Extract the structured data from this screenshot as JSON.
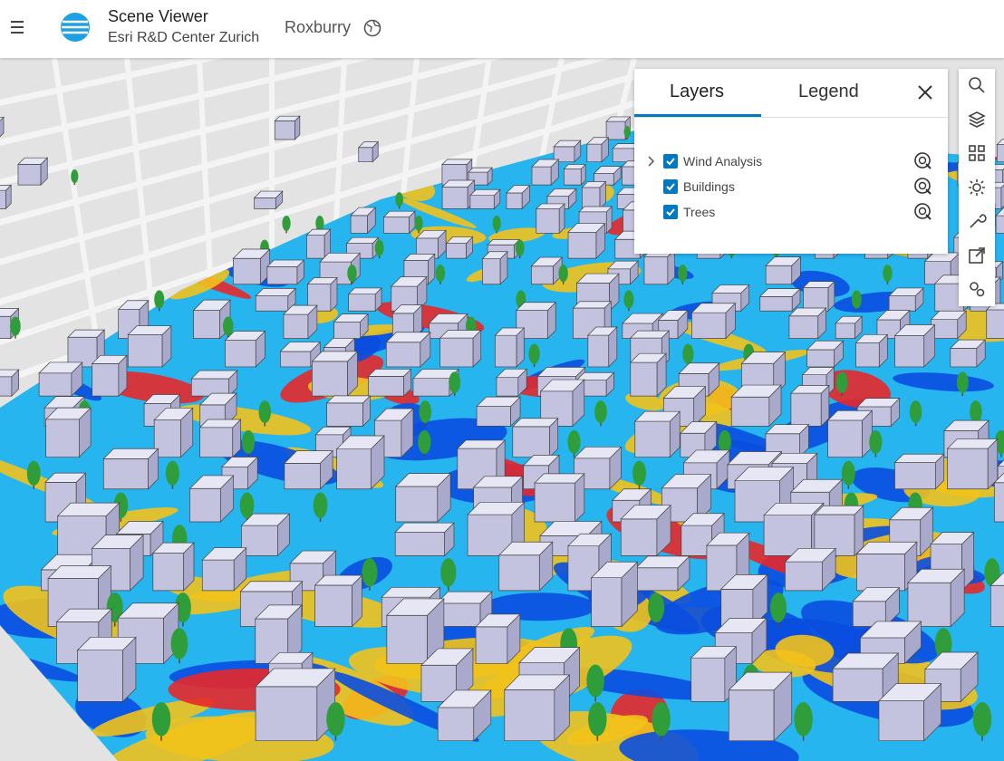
{
  "header": {
    "title": "Scene Viewer",
    "subtitle": "Esri R&D Center Zurich",
    "scene": "Roxburry"
  },
  "panel": {
    "tabs": [
      "Layers",
      "Legend"
    ],
    "layers": [
      {
        "name": "Wind Analysis",
        "visible": true,
        "expandable": true
      },
      {
        "name": "Buildings",
        "visible": true,
        "expandable": false
      },
      {
        "name": "Trees",
        "visible": true,
        "expandable": false
      }
    ]
  }
}
